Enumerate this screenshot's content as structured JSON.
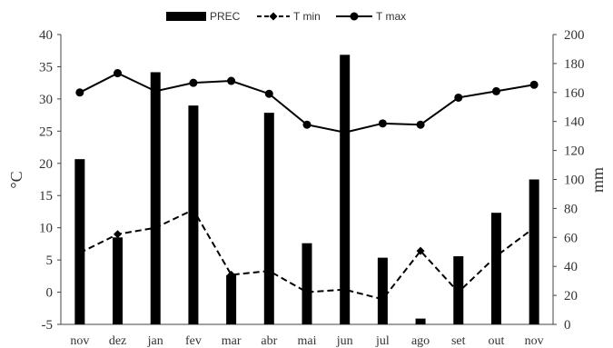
{
  "chart_data": {
    "type": "bar+line",
    "categories": [
      "nov",
      "dez",
      "jan",
      "fev",
      "mar",
      "abr",
      "mai",
      "jun",
      "jul",
      "ago",
      "set",
      "out",
      "nov"
    ],
    "series": [
      {
        "name": "PREC",
        "type": "bar",
        "axis": "right",
        "color": "#000000",
        "values": [
          114,
          60,
          174,
          151,
          34,
          146,
          56,
          186,
          46,
          4,
          47,
          77,
          100
        ]
      },
      {
        "name": "T min",
        "type": "line",
        "axis": "left",
        "dash": "dashed",
        "marker": "diamond",
        "color": "#000000",
        "values": [
          6.1,
          9.0,
          10.0,
          12.8,
          2.7,
          3.3,
          0.0,
          0.4,
          -1.1,
          6.4,
          0.0,
          5.6,
          10.0
        ]
      },
      {
        "name": "T max",
        "type": "line",
        "axis": "left",
        "dash": "solid",
        "marker": "circle",
        "color": "#000000",
        "values": [
          31.0,
          34.0,
          31.2,
          32.5,
          32.8,
          30.8,
          26.0,
          24.8,
          26.2,
          26.0,
          30.2,
          31.2,
          32.2
        ]
      }
    ],
    "y_left": {
      "label": "°C",
      "min": -5,
      "max": 40,
      "ticks": [
        -5,
        0,
        5,
        10,
        15,
        20,
        25,
        30,
        35,
        40
      ]
    },
    "y_right": {
      "label": "mm",
      "min": 0,
      "max": 200,
      "ticks": [
        0,
        20,
        40,
        60,
        80,
        100,
        120,
        140,
        160,
        180,
        200
      ]
    },
    "legend": {
      "position": "top",
      "entries": [
        "PREC",
        "T min",
        "T max"
      ]
    },
    "grid": false
  }
}
